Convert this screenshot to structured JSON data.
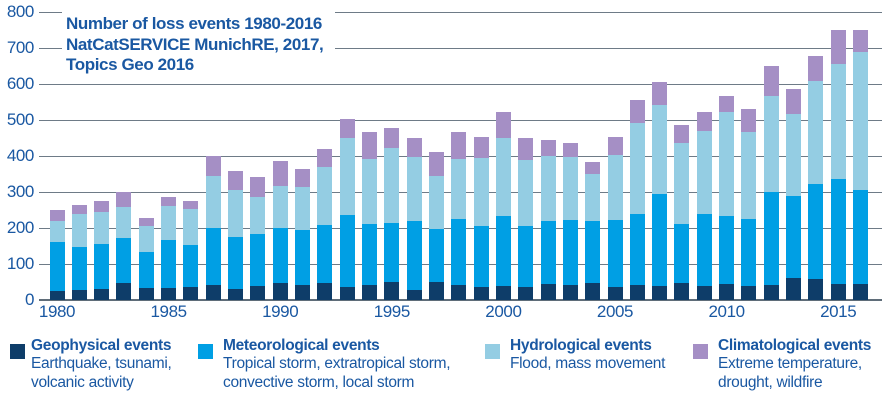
{
  "chart_data": {
    "type": "bar",
    "stacked": true,
    "title": "Number of loss events 1980-2016",
    "subtitle1": "NatCatSERVICE MunichRE, 2017,",
    "subtitle2": "Topics Geo 2016",
    "grid": true,
    "legend_position": "bottom",
    "ylim": [
      0,
      800
    ],
    "yticks": [
      0,
      100,
      200,
      300,
      400,
      500,
      600,
      700,
      800
    ],
    "xticks": [
      1980,
      1985,
      1990,
      1995,
      2000,
      2005,
      2010,
      2015
    ],
    "categories": [
      1980,
      1981,
      1982,
      1983,
      1984,
      1985,
      1986,
      1987,
      1988,
      1989,
      1990,
      1991,
      1992,
      1993,
      1994,
      1995,
      1996,
      1997,
      1998,
      1999,
      2000,
      2001,
      2002,
      2003,
      2004,
      2005,
      2006,
      2007,
      2008,
      2009,
      2010,
      2011,
      2012,
      2013,
      2014,
      2015,
      2016
    ],
    "series": [
      {
        "key": "geophysical",
        "name": "Geophysical events",
        "description": "Earthquake, tsunami,\nvolcanic activity",
        "color": "#0e3d69",
        "values": [
          25,
          28,
          30,
          48,
          32,
          34,
          37,
          42,
          30,
          39,
          48,
          41,
          46,
          37,
          41,
          49,
          28,
          49,
          43,
          37,
          39,
          35,
          44,
          41,
          46,
          35,
          42,
          39,
          46,
          40,
          44,
          40,
          42,
          62,
          57,
          44,
          45
        ]
      },
      {
        "key": "meteorological",
        "name": "Meteorological events",
        "description": "Tropical storm, extratropical storm,\nconvective storm, local storm",
        "color": "#009fe4",
        "values": [
          135,
          120,
          125,
          125,
          100,
          134,
          115,
          157,
          146,
          144,
          153,
          153,
          162,
          199,
          169,
          166,
          192,
          147,
          181,
          169,
          195,
          172,
          175,
          181,
          174,
          187,
          196,
          255,
          165,
          198,
          190,
          185,
          257,
          227,
          264,
          291,
          260
        ]
      },
      {
        "key": "hydrological",
        "name": "Hydrological events",
        "description": "Flood, mass movement",
        "color": "#94cde3",
        "values": [
          60,
          90,
          90,
          85,
          73,
          92,
          100,
          146,
          131,
          104,
          117,
          121,
          162,
          215,
          183,
          206,
          178,
          149,
          168,
          189,
          217,
          182,
          181,
          174,
          129,
          181,
          255,
          248,
          226,
          231,
          287,
          241,
          269,
          228,
          287,
          320,
          383
        ]
      },
      {
        "key": "climatological",
        "name": "Climatological events",
        "description": "Extreme temperature,\ndrought, wildfire",
        "color": "#a58fc5",
        "values": [
          30,
          27,
          30,
          42,
          22,
          27,
          24,
          55,
          52,
          54,
          68,
          49,
          50,
          51,
          75,
          58,
          53,
          67,
          76,
          59,
          72,
          60,
          44,
          39,
          35,
          49,
          64,
          64,
          49,
          52,
          46,
          66,
          82,
          69,
          71,
          95,
          62
        ]
      }
    ]
  },
  "style": {
    "text_color": "#1a58a2",
    "gridline_color": "#6e7b87",
    "background": "#ffffff"
  }
}
